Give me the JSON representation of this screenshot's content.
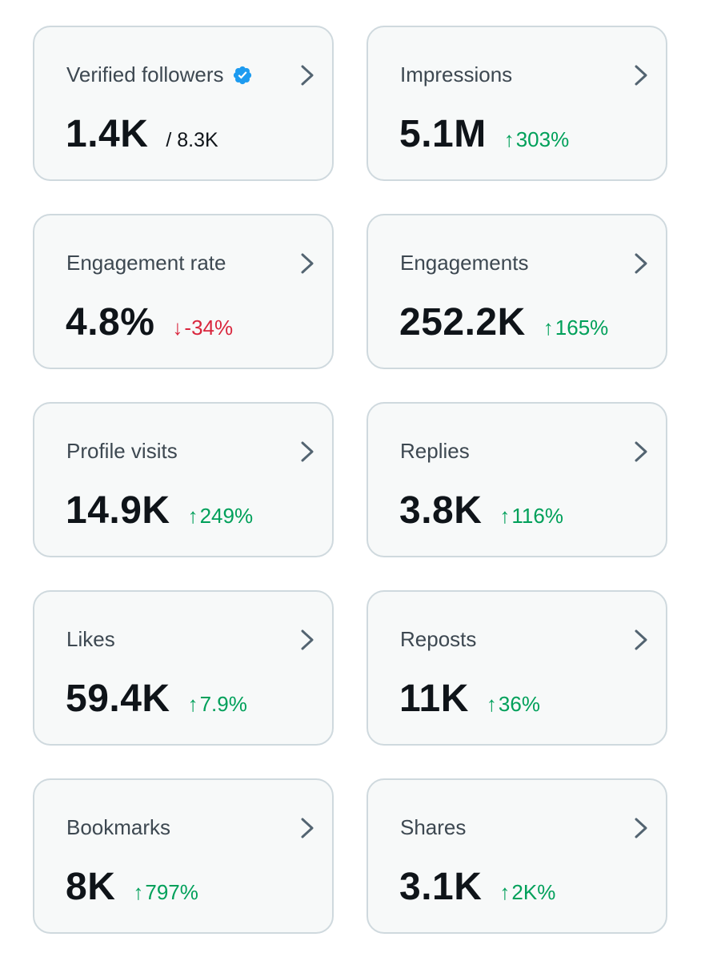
{
  "colors": {
    "card_background": "#f7f9f9",
    "card_border": "#cfd9de",
    "positive": "#00a05a",
    "negative": "#d9263d",
    "verified": "#1d9bf0",
    "label": "#3d4851",
    "value": "#0f1419"
  },
  "cards": [
    {
      "label": "Verified followers",
      "value": "1.4K",
      "total": "/ 8.3K",
      "icon": "verified-badge-icon"
    },
    {
      "label": "Impressions",
      "value": "5.1M",
      "arrow": "↑",
      "change": "303%",
      "direction": "up"
    },
    {
      "label": "Engagement rate",
      "value": "4.8%",
      "arrow": "↓",
      "change": "-34%",
      "direction": "down"
    },
    {
      "label": "Engagements",
      "value": "252.2K",
      "arrow": "↑",
      "change": "165%",
      "direction": "up"
    },
    {
      "label": "Profile visits",
      "value": "14.9K",
      "arrow": "↑",
      "change": "249%",
      "direction": "up"
    },
    {
      "label": "Replies",
      "value": "3.8K",
      "arrow": "↑",
      "change": "116%",
      "direction": "up"
    },
    {
      "label": "Likes",
      "value": "59.4K",
      "arrow": "↑",
      "change": "7.9%",
      "direction": "up"
    },
    {
      "label": "Reposts",
      "value": "11K",
      "arrow": "↑",
      "change": "36%",
      "direction": "up"
    },
    {
      "label": "Bookmarks",
      "value": "8K",
      "arrow": "↑",
      "change": "797%",
      "direction": "up"
    },
    {
      "label": "Shares",
      "value": "3.1K",
      "arrow": "↑",
      "change": "2K%",
      "direction": "up"
    }
  ]
}
